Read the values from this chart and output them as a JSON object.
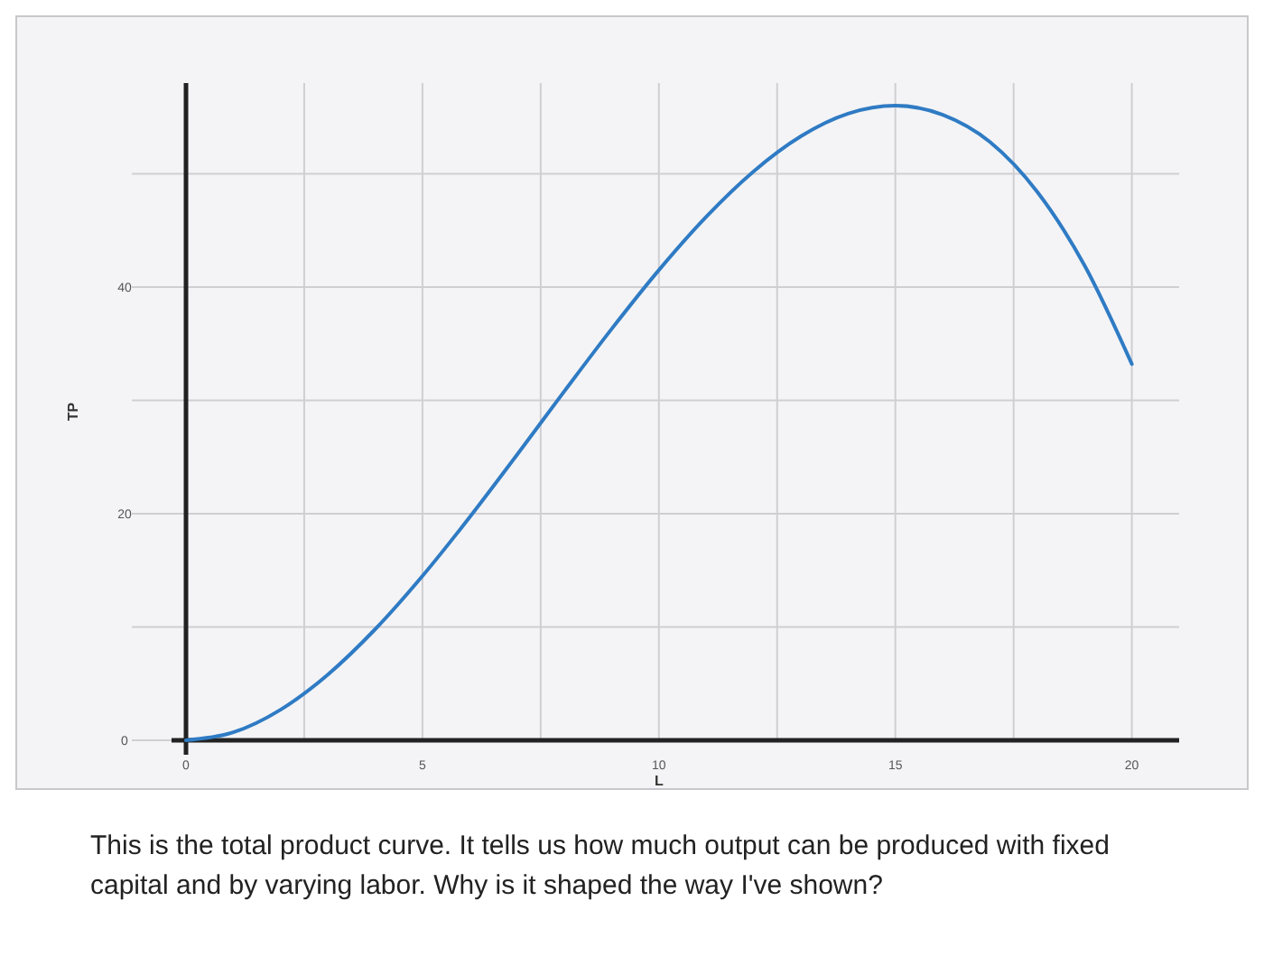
{
  "chart_data": {
    "type": "line",
    "xlabel": "L",
    "ylabel": "TP",
    "x": [
      0,
      1,
      2,
      3,
      4,
      5,
      6,
      7,
      8,
      9,
      10,
      11,
      12,
      13,
      14,
      15,
      16,
      17,
      18,
      19,
      20
    ],
    "series": [
      {
        "color": "#2f7bc4",
        "values": [
          0,
          0.7,
          2.7,
          5.8,
          9.8,
          14.5,
          19.7,
          25.2,
          30.8,
          36.3,
          41.5,
          46.2,
          50.2,
          53.3,
          55.3,
          56,
          55.2,
          52.8,
          48.4,
          41.9,
          33.2
        ]
      }
    ],
    "xlim": [
      0,
      21
    ],
    "ylim": [
      0,
      58
    ],
    "xticks": [
      0,
      {
        "value": 2.5,
        "label": null
      },
      5,
      {
        "value": 7.5,
        "label": null
      },
      10,
      {
        "value": 12.5,
        "label": null
      },
      15,
      {
        "value": 17.5,
        "label": null
      },
      20
    ],
    "yticks": [
      0,
      {
        "value": 10,
        "label": null
      },
      20,
      {
        "value": 30,
        "label": null
      },
      40,
      {
        "value": 50,
        "label": null
      }
    ],
    "grid": true,
    "marker": "none",
    "line_style": "solid",
    "annotations": [
      "This is the total product curve. It tells us how much output can be produced with fixed capital and by varying labor. Why is it shaped the way I've shown?"
    ]
  }
}
